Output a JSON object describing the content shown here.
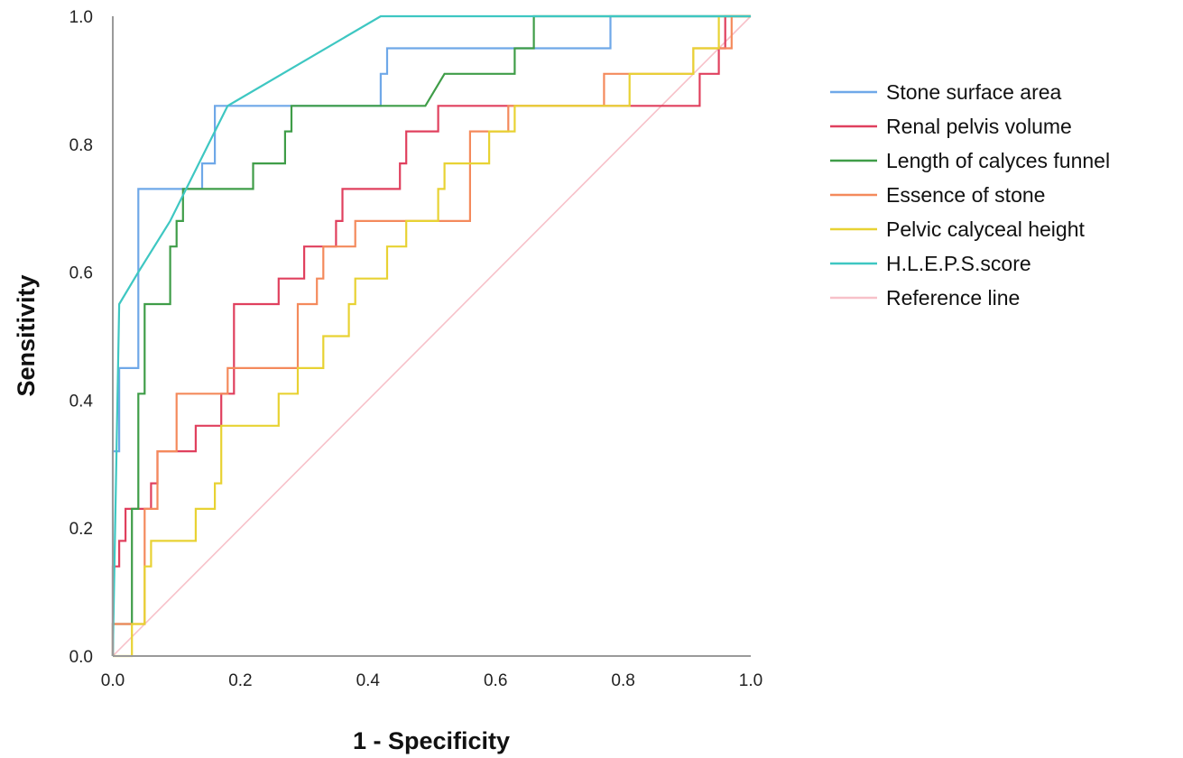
{
  "chart_data": {
    "type": "line",
    "xlabel": "1 - Specificity",
    "ylabel": "Sensitivity",
    "xlim": [
      0,
      1
    ],
    "ylim": [
      0,
      1
    ],
    "x_ticks": [
      "0.0",
      "0.2",
      "0.4",
      "0.6",
      "0.8",
      "1.0"
    ],
    "y_ticks": [
      "0.0",
      "0.2",
      "0.4",
      "0.6",
      "0.8",
      "1.0"
    ],
    "grid": false,
    "legend_position": "right",
    "series": [
      {
        "name": "Stone surface area",
        "color": "#6fa8e8",
        "points": [
          [
            0,
            0
          ],
          [
            0,
            0.32
          ],
          [
            0.01,
            0.32
          ],
          [
            0.01,
            0.45
          ],
          [
            0.04,
            0.45
          ],
          [
            0.04,
            0.73
          ],
          [
            0.14,
            0.73
          ],
          [
            0.14,
            0.77
          ],
          [
            0.16,
            0.77
          ],
          [
            0.16,
            0.86
          ],
          [
            0.42,
            0.86
          ],
          [
            0.42,
            0.91
          ],
          [
            0.43,
            0.91
          ],
          [
            0.43,
            0.95
          ],
          [
            0.78,
            0.95
          ],
          [
            0.78,
            1.0
          ],
          [
            1.0,
            1.0
          ]
        ]
      },
      {
        "name": "Renal pelvis volume",
        "color": "#e0405e",
        "points": [
          [
            0,
            0
          ],
          [
            0,
            0.14
          ],
          [
            0.01,
            0.14
          ],
          [
            0.01,
            0.18
          ],
          [
            0.02,
            0.18
          ],
          [
            0.02,
            0.23
          ],
          [
            0.06,
            0.23
          ],
          [
            0.06,
            0.27
          ],
          [
            0.07,
            0.27
          ],
          [
            0.07,
            0.32
          ],
          [
            0.13,
            0.32
          ],
          [
            0.13,
            0.36
          ],
          [
            0.17,
            0.36
          ],
          [
            0.17,
            0.41
          ],
          [
            0.19,
            0.41
          ],
          [
            0.19,
            0.55
          ],
          [
            0.26,
            0.55
          ],
          [
            0.26,
            0.59
          ],
          [
            0.3,
            0.59
          ],
          [
            0.3,
            0.64
          ],
          [
            0.35,
            0.64
          ],
          [
            0.35,
            0.68
          ],
          [
            0.36,
            0.68
          ],
          [
            0.36,
            0.73
          ],
          [
            0.45,
            0.73
          ],
          [
            0.45,
            0.77
          ],
          [
            0.46,
            0.77
          ],
          [
            0.46,
            0.82
          ],
          [
            0.51,
            0.82
          ],
          [
            0.51,
            0.86
          ],
          [
            0.92,
            0.86
          ],
          [
            0.92,
            0.91
          ],
          [
            0.95,
            0.91
          ],
          [
            0.95,
            0.95
          ],
          [
            0.96,
            0.95
          ],
          [
            0.96,
            1.0
          ],
          [
            1.0,
            1.0
          ]
        ]
      },
      {
        "name": "Length of calyces funnel",
        "color": "#3f9d48",
        "points": [
          [
            0,
            0
          ],
          [
            0,
            0.05
          ],
          [
            0.03,
            0.05
          ],
          [
            0.03,
            0.23
          ],
          [
            0.04,
            0.23
          ],
          [
            0.04,
            0.41
          ],
          [
            0.05,
            0.41
          ],
          [
            0.05,
            0.55
          ],
          [
            0.09,
            0.55
          ],
          [
            0.09,
            0.64
          ],
          [
            0.1,
            0.64
          ],
          [
            0.1,
            0.68
          ],
          [
            0.11,
            0.68
          ],
          [
            0.11,
            0.73
          ],
          [
            0.22,
            0.73
          ],
          [
            0.22,
            0.77
          ],
          [
            0.27,
            0.77
          ],
          [
            0.27,
            0.82
          ],
          [
            0.28,
            0.82
          ],
          [
            0.28,
            0.86
          ],
          [
            0.49,
            0.86
          ],
          [
            0.52,
            0.91
          ],
          [
            0.63,
            0.91
          ],
          [
            0.63,
            0.95
          ],
          [
            0.66,
            0.95
          ],
          [
            0.66,
            1.0
          ],
          [
            1.0,
            1.0
          ]
        ]
      },
      {
        "name": "Essence of stone",
        "color": "#f48a5c",
        "points": [
          [
            0,
            0
          ],
          [
            0,
            0.05
          ],
          [
            0.05,
            0.05
          ],
          [
            0.05,
            0.23
          ],
          [
            0.07,
            0.23
          ],
          [
            0.07,
            0.32
          ],
          [
            0.1,
            0.32
          ],
          [
            0.1,
            0.41
          ],
          [
            0.18,
            0.41
          ],
          [
            0.18,
            0.45
          ],
          [
            0.29,
            0.45
          ],
          [
            0.29,
            0.55
          ],
          [
            0.32,
            0.55
          ],
          [
            0.32,
            0.59
          ],
          [
            0.33,
            0.59
          ],
          [
            0.33,
            0.64
          ],
          [
            0.38,
            0.64
          ],
          [
            0.38,
            0.68
          ],
          [
            0.56,
            0.68
          ],
          [
            0.56,
            0.82
          ],
          [
            0.62,
            0.82
          ],
          [
            0.62,
            0.86
          ],
          [
            0.77,
            0.86
          ],
          [
            0.77,
            0.91
          ],
          [
            0.91,
            0.91
          ],
          [
            0.91,
            0.95
          ],
          [
            0.97,
            0.95
          ],
          [
            0.97,
            1.0
          ],
          [
            1.0,
            1.0
          ]
        ]
      },
      {
        "name": "Pelvic calyceal height",
        "color": "#e8d233",
        "points": [
          [
            0,
            0
          ],
          [
            0.03,
            0
          ],
          [
            0.03,
            0.05
          ],
          [
            0.05,
            0.05
          ],
          [
            0.05,
            0.14
          ],
          [
            0.06,
            0.14
          ],
          [
            0.06,
            0.18
          ],
          [
            0.13,
            0.18
          ],
          [
            0.13,
            0.23
          ],
          [
            0.16,
            0.23
          ],
          [
            0.16,
            0.27
          ],
          [
            0.17,
            0.27
          ],
          [
            0.17,
            0.36
          ],
          [
            0.26,
            0.36
          ],
          [
            0.26,
            0.41
          ],
          [
            0.29,
            0.41
          ],
          [
            0.29,
            0.45
          ],
          [
            0.33,
            0.45
          ],
          [
            0.33,
            0.5
          ],
          [
            0.37,
            0.5
          ],
          [
            0.37,
            0.55
          ],
          [
            0.38,
            0.55
          ],
          [
            0.38,
            0.59
          ],
          [
            0.43,
            0.59
          ],
          [
            0.43,
            0.64
          ],
          [
            0.46,
            0.64
          ],
          [
            0.46,
            0.68
          ],
          [
            0.51,
            0.68
          ],
          [
            0.51,
            0.73
          ],
          [
            0.52,
            0.73
          ],
          [
            0.52,
            0.77
          ],
          [
            0.59,
            0.77
          ],
          [
            0.59,
            0.82
          ],
          [
            0.63,
            0.82
          ],
          [
            0.63,
            0.86
          ],
          [
            0.81,
            0.86
          ],
          [
            0.81,
            0.91
          ],
          [
            0.91,
            0.91
          ],
          [
            0.91,
            0.95
          ],
          [
            0.95,
            0.95
          ],
          [
            0.95,
            1.0
          ],
          [
            1.0,
            1.0
          ]
        ]
      },
      {
        "name": "H.L.E.P.S.score",
        "color": "#3ec7c2",
        "points": [
          [
            0,
            0
          ],
          [
            0.01,
            0.55
          ],
          [
            0.04,
            0.6
          ],
          [
            0.09,
            0.68
          ],
          [
            0.16,
            0.82
          ],
          [
            0.18,
            0.86
          ],
          [
            0.42,
            1.0
          ],
          [
            1.0,
            1.0
          ]
        ]
      },
      {
        "name": "Reference line",
        "color": "#f7c1c9",
        "points": [
          [
            0,
            0
          ],
          [
            1,
            1
          ]
        ]
      }
    ]
  }
}
